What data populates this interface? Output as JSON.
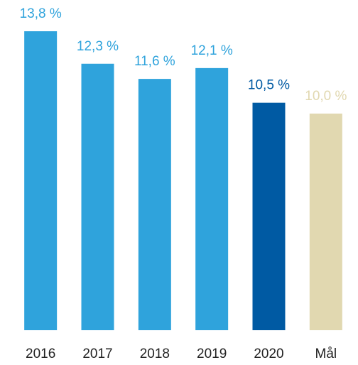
{
  "chart_data": {
    "type": "bar",
    "categories": [
      "2016",
      "2017",
      "2018",
      "2019",
      "2020",
      "Mål"
    ],
    "values": [
      13.8,
      12.3,
      11.6,
      12.1,
      10.5,
      10.0
    ],
    "value_labels": [
      "13,8 %",
      "12,3 %",
      "11,6 %",
      "12,1 %",
      "10,5 %",
      "10,0 %"
    ],
    "colors": [
      "#2fa3dc",
      "#2fa3dc",
      "#2fa3dc",
      "#2fa3dc",
      "#005aa3",
      "#e1d8b0"
    ],
    "ylim": [
      0,
      13.8
    ]
  }
}
